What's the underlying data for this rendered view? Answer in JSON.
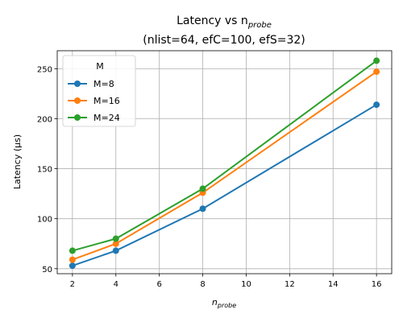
{
  "chart_data": {
    "type": "line",
    "title_line1": "Latency vs n",
    "title_sub": "probe",
    "title_line2": "(nlist=64, efC=100, efS=32)",
    "xlabel": "n",
    "xlabel_sub": "probe",
    "ylabel": "Latency (µs)",
    "x": [
      2,
      4,
      8,
      16
    ],
    "xlim": [
      1.3,
      16.7
    ],
    "ylim": [
      45,
      268
    ],
    "xticks": [
      2,
      4,
      6,
      8,
      10,
      12,
      14,
      16
    ],
    "yticks": [
      50,
      100,
      150,
      200,
      250
    ],
    "grid": true,
    "legend_title": "M",
    "legend_position": "upper-left",
    "series": [
      {
        "name": "M=8",
        "color": "#1f77b4",
        "values": [
          53,
          68,
          110,
          214
        ]
      },
      {
        "name": "M=16",
        "color": "#ff7f0e",
        "values": [
          59,
          75,
          126,
          247
        ]
      },
      {
        "name": "M=24",
        "color": "#2ca02c",
        "values": [
          68,
          80,
          130,
          258
        ]
      }
    ]
  }
}
